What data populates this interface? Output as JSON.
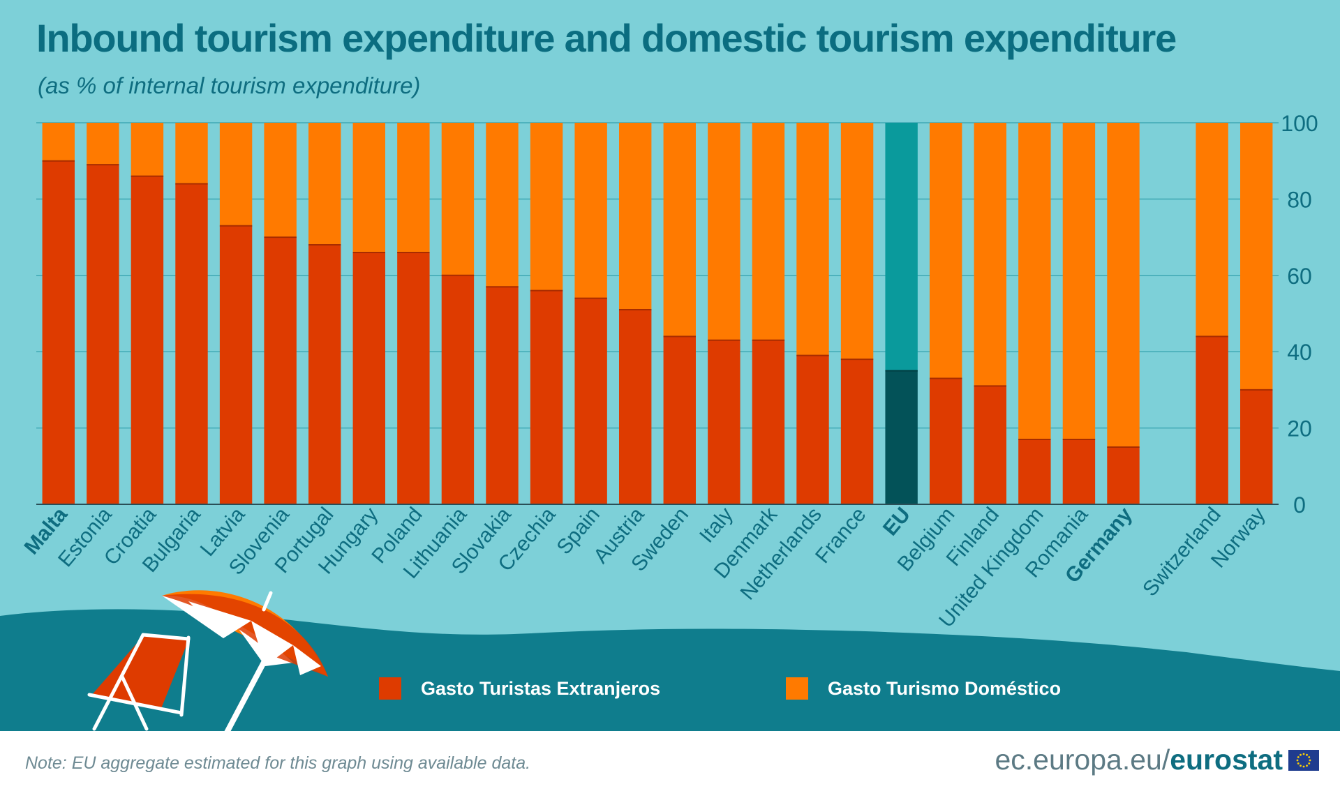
{
  "title": "Inbound tourism expenditure and domestic tourism expenditure",
  "subtitle": "(as % of internal tourism expenditure)",
  "legend": [
    {
      "label": "Gasto Turistas Extranjeros",
      "color": "#de3b00"
    },
    {
      "label": "Gasto Turismo Doméstico",
      "color": "#ff7a00"
    }
  ],
  "colors": {
    "background": "#7dd0d8",
    "inbound": "#de3b00",
    "domestic": "#ff7a00",
    "eu_inbound": "#035258",
    "eu_domestic": "#0a9a9c",
    "axis_text": "#0e6d80",
    "sea": "#0f7d8d"
  },
  "chart_data": {
    "type": "bar",
    "stacked": true,
    "categories": [
      "Malta",
      "Estonia",
      "Croatia",
      "Bulgaria",
      "Latvia",
      "Slovenia",
      "Portugal",
      "Hungary",
      "Poland",
      "Lithuania",
      "Slovakia",
      "Czechia",
      "Spain",
      "Austria",
      "Sweden",
      "Italy",
      "Denmark",
      "Netherlands",
      "France",
      "EU",
      "Belgium",
      "Finland",
      "United Kingdom",
      "Romania",
      "Germany",
      "",
      "Switzerland",
      "Norway"
    ],
    "bold_categories": [
      "Malta",
      "EU",
      "Germany"
    ],
    "highlight_category": "EU",
    "series": [
      {
        "name": "Gasto Turistas Extranjeros",
        "values": [
          90,
          89,
          86,
          84,
          73,
          70,
          68,
          66,
          66,
          60,
          57,
          56,
          54,
          51,
          44,
          43,
          43,
          39,
          38,
          35,
          33,
          31,
          17,
          17,
          15,
          null,
          44,
          30
        ]
      },
      {
        "name": "Gasto Turismo Doméstico",
        "values": [
          10,
          11,
          14,
          16,
          27,
          30,
          32,
          34,
          34,
          40,
          43,
          44,
          46,
          49,
          56,
          57,
          57,
          61,
          62,
          65,
          67,
          69,
          83,
          83,
          85,
          null,
          56,
          70
        ]
      }
    ],
    "ylim": [
      0,
      100
    ],
    "yticks": [
      0,
      20,
      40,
      60,
      80,
      100
    ],
    "y_axis_side": "right",
    "grid": true
  },
  "note": "Note: EU aggregate estimated for this graph using available data.",
  "brand": {
    "site": "ec.europa.eu/",
    "name": "eurostat"
  }
}
